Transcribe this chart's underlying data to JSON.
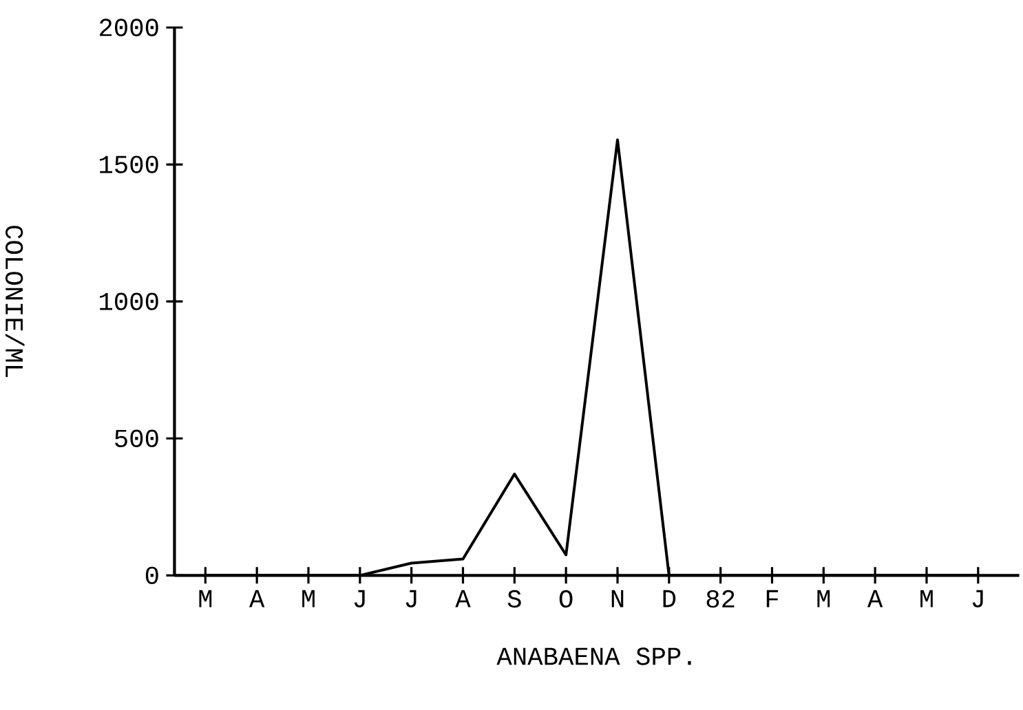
{
  "chart_data": {
    "type": "line",
    "xlabel": "ANABAENA SPP.",
    "ylabel": "COLONIE/ML",
    "categories": [
      "M",
      "A",
      "M",
      "J",
      "J",
      "A",
      "S",
      "O",
      "N",
      "D",
      "82",
      "F",
      "M",
      "A",
      "M",
      "J"
    ],
    "values": [
      0,
      0,
      0,
      0,
      45,
      60,
      370,
      75,
      1590,
      0,
      0,
      0,
      0,
      0,
      0,
      0
    ],
    "color": "#000000",
    "ylim": [
      0,
      2000
    ],
    "yticks": [
      0,
      500,
      1000,
      1500,
      2000
    ],
    "grid": false,
    "marker": "none",
    "line_style": "solid"
  }
}
